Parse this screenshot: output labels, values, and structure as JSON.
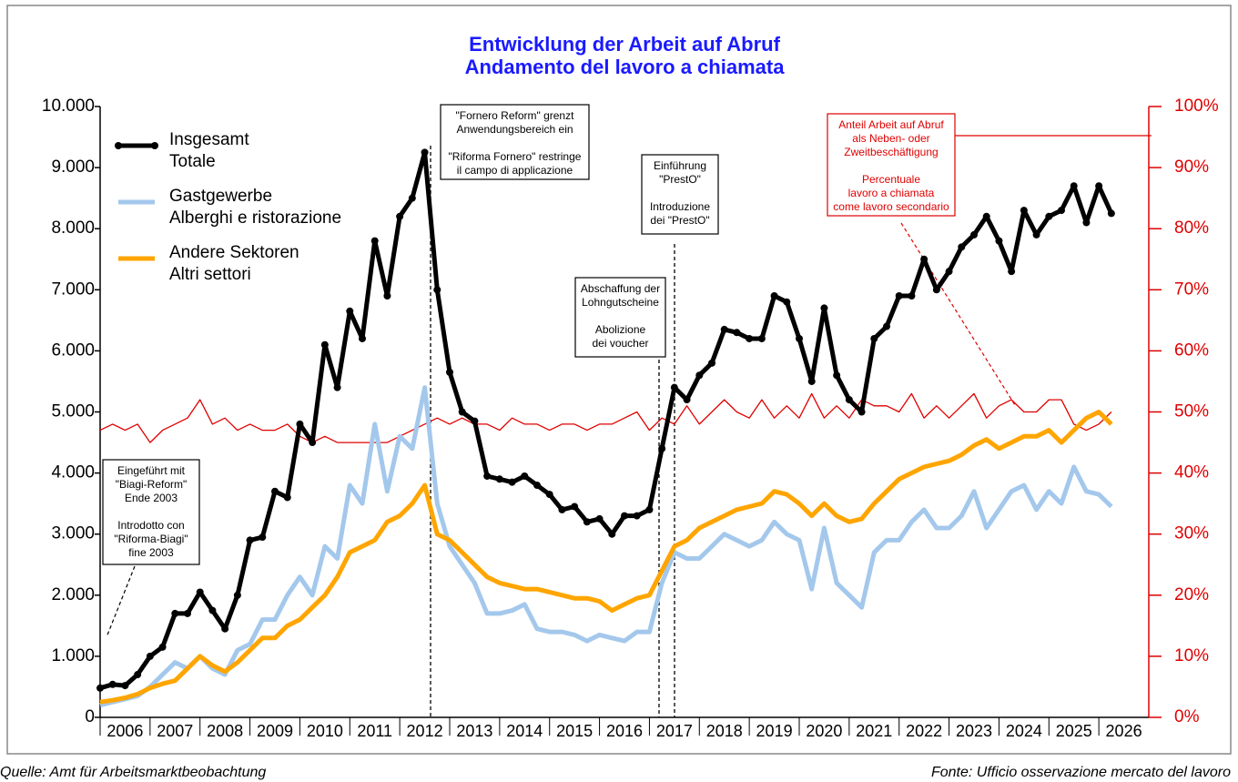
{
  "chart_data": {
    "type": "line",
    "title": "Entwicklung der Arbeit auf Abruf",
    "subtitle": "Andamento del lavoro a chiamata",
    "source_left": "Quelle: Amt für Arbeitsmarktbeobachtung",
    "source_right": "Fonte: Ufficio osservazione mercato del lavoro",
    "x": [
      2006,
      2006.25,
      2006.5,
      2006.75,
      2007,
      2007.25,
      2007.5,
      2007.75,
      2008,
      2008.25,
      2008.5,
      2008.75,
      2009,
      2009.25,
      2009.5,
      2009.75,
      2010,
      2010.25,
      2010.5,
      2010.75,
      2011,
      2011.25,
      2011.5,
      2011.75,
      2012,
      2012.25,
      2012.5,
      2012.75,
      2013,
      2013.25,
      2013.5,
      2013.75,
      2014,
      2014.25,
      2014.5,
      2014.75,
      2015,
      2015.25,
      2015.5,
      2015.75,
      2016,
      2016.25,
      2016.5,
      2016.75,
      2017,
      2017.25,
      2017.5,
      2017.75,
      2018,
      2018.25,
      2018.5,
      2018.75,
      2019,
      2019.25,
      2019.5,
      2019.75,
      2020,
      2020.25,
      2020.5,
      2020.75,
      2021,
      2021.25,
      2021.5,
      2021.75,
      2022,
      2022.25,
      2022.5,
      2022.75,
      2023,
      2023.25,
      2023.5,
      2023.75,
      2024,
      2024.25,
      2024.5,
      2024.75,
      2025,
      2025.25,
      2025.5,
      2025.75,
      2026,
      2026.25
    ],
    "xlim": [
      2006,
      2027
    ],
    "xticks": [
      2006,
      2007,
      2008,
      2009,
      2010,
      2011,
      2012,
      2013,
      2014,
      2015,
      2016,
      2017,
      2018,
      2019,
      2020,
      2021,
      2022,
      2023,
      2024,
      2025,
      2026
    ],
    "ylim": [
      0,
      10000
    ],
    "yticks": [
      0,
      {
        "value": 1000,
        "label": "1.000"
      },
      {
        "value": 2000,
        "label": "2.000"
      },
      {
        "value": 3000,
        "label": "3.000"
      },
      {
        "value": 4000,
        "label": "4.000"
      },
      {
        "value": 5000,
        "label": "5.000"
      },
      {
        "value": 6000,
        "label": "6.000"
      },
      {
        "value": 7000,
        "label": "7.000"
      },
      {
        "value": 8000,
        "label": "8.000"
      },
      {
        "value": 9000,
        "label": "9.000"
      },
      {
        "value": 10000,
        "label": "10.000"
      }
    ],
    "y2lim": [
      0,
      100
    ],
    "y2ticks": [
      {
        "value": 0,
        "label": "0%"
      },
      {
        "value": 10,
        "label": "10%"
      },
      {
        "value": 20,
        "label": "20%"
      },
      {
        "value": 30,
        "label": "30%"
      },
      {
        "value": 40,
        "label": "40%"
      },
      {
        "value": 50,
        "label": "50%"
      },
      {
        "value": 60,
        "label": "60%"
      },
      {
        "value": 70,
        "label": "70%"
      },
      {
        "value": 80,
        "label": "80%"
      },
      {
        "value": 90,
        "label": "90%"
      },
      {
        "value": 100,
        "label": "100%"
      }
    ],
    "legend": "upper left",
    "series": [
      {
        "name": "Insgesamt\nTotale",
        "color": "#000000",
        "markers": true,
        "values": [
          480,
          540,
          520,
          700,
          1000,
          1150,
          1700,
          1700,
          2050,
          1750,
          1450,
          2000,
          2900,
          2950,
          3700,
          3600,
          4800,
          4500,
          6100,
          5400,
          6650,
          6200,
          7800,
          6900,
          8200,
          8500,
          9250,
          7000,
          5650,
          5000,
          4850,
          3950,
          3900,
          3850,
          3950,
          3800,
          3650,
          3400,
          3450,
          3200,
          3250,
          3000,
          3300,
          3300,
          3400,
          4400,
          5400,
          5200,
          5600,
          5800,
          6350,
          6300,
          6200,
          6200,
          6900,
          6800,
          6200,
          5500,
          6700,
          5600,
          5200,
          5000,
          6200,
          6400,
          6900,
          6900,
          7500,
          7000,
          7300,
          7700,
          7900,
          8200,
          7800,
          7300,
          8300,
          7900,
          8200,
          8300,
          8700,
          8100,
          8700,
          8250
        ]
      },
      {
        "name": "Gastgewerbe\nAlberghi e ristorazione",
        "color": "#a4c8ec",
        "values": [
          200,
          250,
          300,
          350,
          500,
          700,
          900,
          800,
          1000,
          800,
          700,
          1100,
          1200,
          1600,
          1600,
          2000,
          2300,
          2000,
          2800,
          2600,
          3800,
          3500,
          4800,
          3700,
          4600,
          4400,
          5400,
          3500,
          2800,
          2500,
          2200,
          1700,
          1700,
          1750,
          1850,
          1450,
          1400,
          1400,
          1350,
          1250,
          1350,
          1300,
          1250,
          1400,
          1400,
          2200,
          2700,
          2600,
          2600,
          2800,
          3000,
          2900,
          2800,
          2900,
          3200,
          3000,
          2900,
          2100,
          3100,
          2200,
          2000,
          1800,
          2700,
          2900,
          2900,
          3200,
          3400,
          3100,
          3100,
          3300,
          3700,
          3100,
          3400,
          3700,
          3800,
          3400,
          3700,
          3500,
          4100,
          3700,
          3650,
          3450
        ]
      },
      {
        "name": "Andere Sektoren\nAltri settori",
        "color": "#ffa500",
        "values": [
          250,
          280,
          320,
          380,
          480,
          550,
          600,
          800,
          1000,
          850,
          750,
          900,
          1100,
          1300,
          1300,
          1500,
          1600,
          1800,
          2000,
          2300,
          2700,
          2800,
          2900,
          3200,
          3300,
          3500,
          3800,
          3000,
          2900,
          2700,
          2500,
          2300,
          2200,
          2150,
          2100,
          2100,
          2050,
          2000,
          1950,
          1950,
          1900,
          1750,
          1850,
          1950,
          2000,
          2400,
          2800,
          2900,
          3100,
          3200,
          3300,
          3400,
          3450,
          3500,
          3700,
          3650,
          3500,
          3300,
          3500,
          3300,
          3200,
          3250,
          3500,
          3700,
          3900,
          4000,
          4100,
          4150,
          4200,
          4300,
          4450,
          4550,
          4400,
          4500,
          4600,
          4600,
          4700,
          4500,
          4700,
          4900,
          5000,
          4800
        ]
      },
      {
        "name": "Anteil Arbeit auf Abruf als Neben- oder Zweitbeschäftigung",
        "color": "#e00000",
        "axis": "y2",
        "legend": false,
        "values": [
          47,
          48,
          47,
          48,
          45,
          47,
          48,
          49,
          52,
          48,
          49,
          47,
          48,
          47,
          47,
          48,
          46,
          45,
          46,
          45,
          45,
          45,
          45,
          45,
          46,
          47,
          48,
          49,
          48,
          49,
          48,
          48,
          47,
          49,
          48,
          48,
          47,
          48,
          48,
          47,
          48,
          48,
          49,
          50,
          47,
          49,
          48,
          51,
          48,
          50,
          52,
          50,
          49,
          52,
          49,
          51,
          49,
          53,
          49,
          51,
          49,
          52,
          51,
          51,
          50,
          53,
          49,
          51,
          49,
          51,
          53,
          49,
          51,
          52,
          50,
          50,
          52,
          52,
          48,
          47,
          48,
          50
        ]
      }
    ],
    "annotations": [
      {
        "lines": [
          "Eingeführt mit",
          "\"Biagi-Reform\"",
          "Ende 2003",
          "Introdotto con",
          "\"Riforma-Biagi\"",
          "fine 2003"
        ]
      },
      {
        "lines": [
          "\"Fornero Reform\" grenzt",
          "Anwendungsbereich ein",
          "\"Riforma Fornero\" restringe",
          "il campo di applicazione"
        ]
      },
      {
        "lines": [
          "Einführung",
          "\"PrestO\"",
          "Introduzione",
          "dei \"PrestO\""
        ]
      },
      {
        "lines": [
          "Abschaffung der",
          "Lohngutscheine",
          "Abolizione",
          "dei voucher"
        ]
      },
      {
        "lines": [
          "Anteil Arbeit auf Abruf",
          "als Neben- oder",
          "Zweitbeschäftigung",
          "Percentuale",
          "lavoro a chiamata",
          "come lavoro secondario"
        ],
        "color": "#e00000"
      }
    ]
  }
}
